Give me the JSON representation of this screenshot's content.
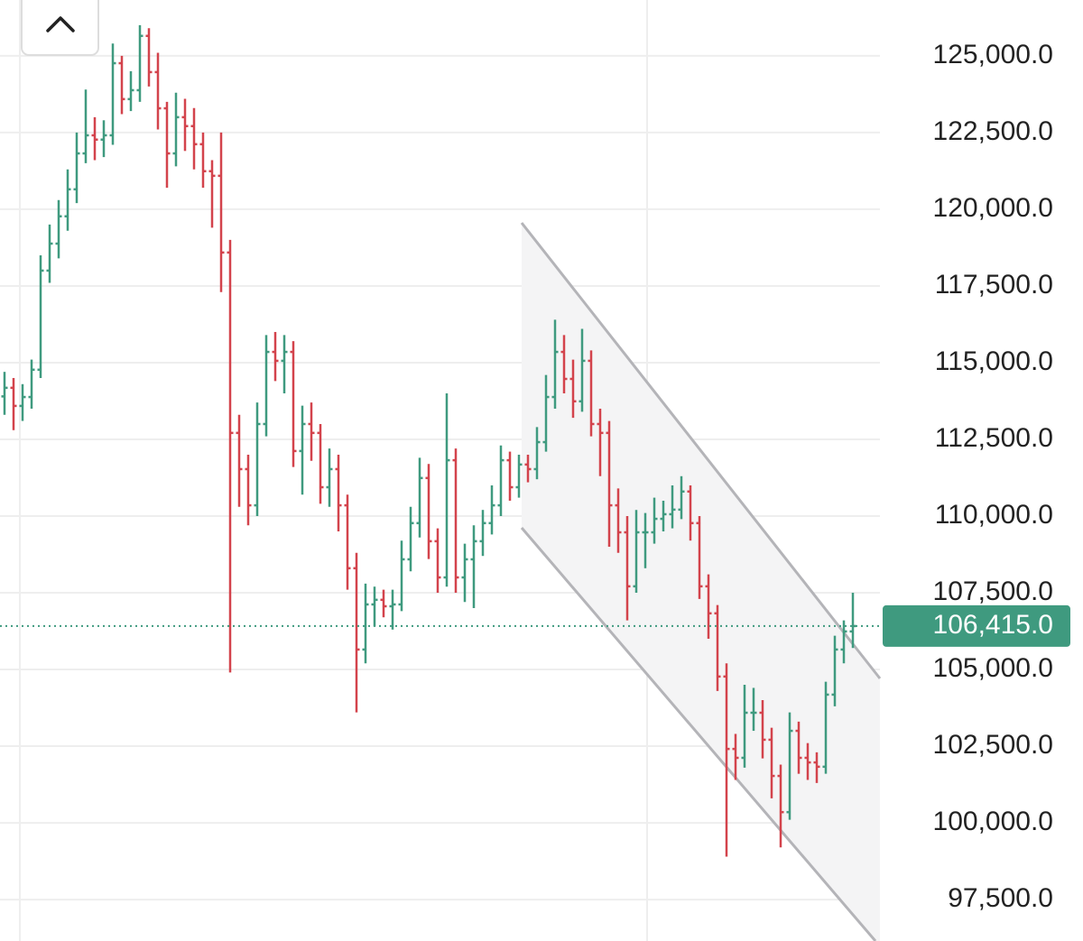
{
  "chart_data": {
    "type": "ohlc",
    "ylim": [
      96150,
      126820
    ],
    "yticks": [
      {
        "value": 125000,
        "label": "125,000.0"
      },
      {
        "value": 122500,
        "label": "122,500.0"
      },
      {
        "value": 120000,
        "label": "120,000.0"
      },
      {
        "value": 117500,
        "label": "117,500.0"
      },
      {
        "value": 115000,
        "label": "115,000.0"
      },
      {
        "value": 112500,
        "label": "112,500.0"
      },
      {
        "value": 110000,
        "label": "110,000.0"
      },
      {
        "value": 107500,
        "label": "107,500.0"
      },
      {
        "value": 105000,
        "label": "105,000.0"
      },
      {
        "value": 102500,
        "label": "102,500.0"
      },
      {
        "value": 100000,
        "label": "100,000.0"
      },
      {
        "value": 97500,
        "label": "97,500.0"
      }
    ],
    "grid": true,
    "up_color": "#3f9a7f",
    "down_color": "#d3434c",
    "last_price": {
      "value": 106415,
      "label": "106,415.0"
    },
    "open": [
      113900,
      114180,
      113590,
      113880,
      114770,
      118000,
      118880,
      119770,
      120650,
      121820,
      122410,
      122270,
      122410,
      124760,
      123590,
      123880,
      125650,
      124470,
      123290,
      121820,
      123000,
      122710,
      122120,
      121240,
      121090,
      118590,
      112710,
      111530,
      110350,
      113000,
      115350,
      115060,
      115350,
      112120,
      113000,
      112710,
      110940,
      111530,
      110350,
      108300,
      105650,
      107120,
      107270,
      107060,
      107120,
      108590,
      109770,
      111240,
      109180,
      108000,
      111820,
      108000,
      108590,
      109180,
      109770,
      110350,
      111820,
      110940,
      111680,
      111530,
      112410,
      113880,
      115350,
      114470,
      113740,
      115060,
      113000,
      112710,
      110350,
      109470,
      107710,
      109470,
      109470,
      109910,
      110060,
      110210,
      110800,
      109770,
      107710,
      106830,
      104770,
      102410,
      102120,
      103590,
      103590,
      102710,
      101530,
      100350,
      103000,
      102120,
      101970,
      101830,
      104180,
      105650,
      106240
    ],
    "high": [
      114700,
      114500,
      114300,
      115100,
      118500,
      119500,
      120300,
      121300,
      122500,
      123900,
      123000,
      122900,
      125400,
      125000,
      124500,
      126000,
      125900,
      125100,
      123500,
      123800,
      123600,
      123300,
      122500,
      121600,
      122500,
      119000,
      113300,
      112000,
      113700,
      115900,
      116000,
      115900,
      115700,
      113600,
      113700,
      113000,
      112200,
      112000,
      110700,
      108800,
      107800,
      107700,
      107600,
      107600,
      109200,
      110300,
      111900,
      111700,
      109600,
      114000,
      112200,
      109100,
      109700,
      110200,
      111000,
      112300,
      112100,
      112000,
      112000,
      112900,
      114600,
      116400,
      115900,
      115100,
      116100,
      115400,
      113500,
      113100,
      110900,
      110000,
      110200,
      110100,
      110600,
      110500,
      111000,
      111300,
      111000,
      110000,
      108100,
      107100,
      105200,
      102900,
      104500,
      104400,
      104000,
      103100,
      101900,
      103600,
      103300,
      102600,
      102300,
      104600,
      106100,
      106600,
      107500
    ],
    "low": [
      113300,
      112800,
      113100,
      113500,
      114500,
      117600,
      118400,
      119300,
      120200,
      121500,
      121600,
      121700,
      122100,
      123100,
      123200,
      123500,
      124000,
      122600,
      120700,
      121400,
      121900,
      121300,
      120700,
      119400,
      117300,
      104900,
      110300,
      109700,
      110000,
      112600,
      114400,
      114000,
      111600,
      110700,
      111800,
      110400,
      110300,
      109500,
      107600,
      103600,
      105200,
      106400,
      106700,
      106300,
      106900,
      108200,
      109300,
      108600,
      107500,
      107700,
      107500,
      107200,
      107000,
      108700,
      109400,
      110000,
      110500,
      110600,
      111100,
      111200,
      112100,
      113500,
      114000,
      113200,
      113400,
      112600,
      111300,
      109000,
      108800,
      106600,
      107500,
      108300,
      109100,
      109500,
      109600,
      109900,
      109200,
      107300,
      106000,
      104300,
      98900,
      101400,
      101800,
      103000,
      102100,
      100800,
      99200,
      100100,
      101600,
      101400,
      101300,
      101600,
      103800,
      105200,
      105700
    ],
    "close": [
      114180,
      113590,
      113880,
      114770,
      118000,
      118880,
      119770,
      120650,
      121820,
      122410,
      122270,
      122410,
      124760,
      123590,
      123880,
      125650,
      124470,
      123290,
      121820,
      123000,
      122710,
      122120,
      121240,
      121090,
      118590,
      112710,
      111530,
      110350,
      113000,
      115350,
      115060,
      115350,
      112120,
      113000,
      112710,
      110940,
      111530,
      110350,
      108300,
      105650,
      107120,
      107270,
      107060,
      107120,
      108590,
      109770,
      111240,
      109180,
      108000,
      111820,
      108000,
      108590,
      109180,
      109770,
      110350,
      111820,
      110940,
      111680,
      111530,
      112410,
      113880,
      115350,
      114470,
      113740,
      115060,
      113000,
      112710,
      110350,
      109470,
      107710,
      109470,
      109470,
      109910,
      110060,
      110210,
      110800,
      109770,
      107710,
      106830,
      104770,
      102410,
      102120,
      103590,
      103590,
      102710,
      101530,
      100350,
      103000,
      102120,
      101970,
      101830,
      104180,
      105650,
      106240,
      106415
    ]
  }
}
